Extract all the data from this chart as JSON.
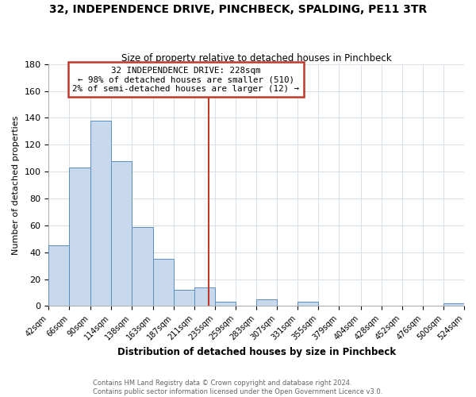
{
  "title": "32, INDEPENDENCE DRIVE, PINCHBECK, SPALDING, PE11 3TR",
  "subtitle": "Size of property relative to detached houses in Pinchbeck",
  "xlabel": "Distribution of detached houses by size in Pinchbeck",
  "ylabel": "Number of detached properties",
  "bin_edges": [
    42,
    66,
    90,
    114,
    138,
    163,
    187,
    211,
    235,
    259,
    283,
    307,
    331,
    355,
    379,
    404,
    428,
    452,
    476,
    500,
    524
  ],
  "bin_labels": [
    "42sqm",
    "66sqm",
    "90sqm",
    "114sqm",
    "138sqm",
    "163sqm",
    "187sqm",
    "211sqm",
    "235sqm",
    "259sqm",
    "283sqm",
    "307sqm",
    "331sqm",
    "355sqm",
    "379sqm",
    "404sqm",
    "428sqm",
    "452sqm",
    "476sqm",
    "500sqm",
    "524sqm"
  ],
  "counts": [
    45,
    103,
    138,
    108,
    59,
    35,
    12,
    14,
    3,
    0,
    5,
    0,
    3,
    0,
    0,
    0,
    0,
    0,
    0,
    2
  ],
  "bar_color": "#c8d9ed",
  "bar_edge_color": "#5a8fc0",
  "grid_color": "#d8e0e8",
  "property_line_x": 228,
  "property_line_color": "#c0392b",
  "annotation_title": "32 INDEPENDENCE DRIVE: 228sqm",
  "annotation_line1": "← 98% of detached houses are smaller (510)",
  "annotation_line2": "2% of semi-detached houses are larger (12) →",
  "annotation_box_color": "#ffffff",
  "annotation_box_edge": "#c0392b",
  "ylim": [
    0,
    180
  ],
  "yticks": [
    0,
    20,
    40,
    60,
    80,
    100,
    120,
    140,
    160,
    180
  ],
  "footer1": "Contains HM Land Registry data © Crown copyright and database right 2024.",
  "footer2": "Contains public sector information licensed under the Open Government Licence v3.0.",
  "background_color": "#ffffff"
}
